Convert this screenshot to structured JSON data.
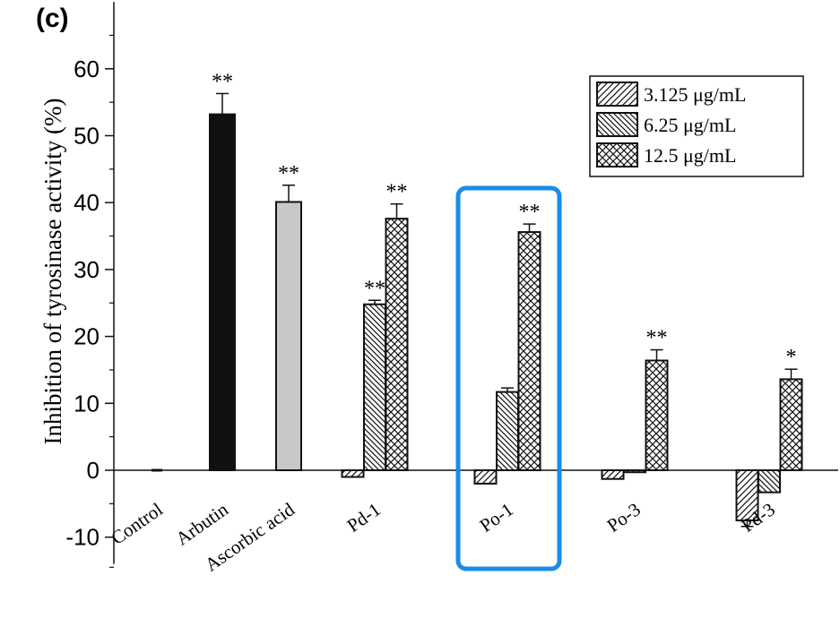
{
  "panel_label": "(c)",
  "chart_data": {
    "type": "bar",
    "title": "",
    "xlabel": "",
    "ylabel": "Inhibition of tyrosinase activity (%)",
    "ylim": [
      -14,
      70
    ],
    "yticks": [
      "60",
      "50",
      "40",
      "30",
      "20",
      "10",
      "0",
      "-10"
    ],
    "ytick_values": [
      60,
      50,
      40,
      30,
      20,
      10,
      0,
      -10
    ],
    "legend_position": "top-right",
    "highlight": {
      "category": "Po-1",
      "color": "#1a8ce8"
    },
    "controls": [
      {
        "category": "Control",
        "value": 0,
        "error": 0,
        "sig": "",
        "fill": "#ffffff"
      },
      {
        "category": "Arbutin",
        "value": 53.2,
        "error": 3.1,
        "sig": "**",
        "fill": "#111111"
      },
      {
        "category": "Ascorbic acid",
        "value": 40.1,
        "error": 2.5,
        "sig": "**",
        "fill": "#c8c8c8"
      }
    ],
    "categories": [
      "Pd-1",
      "Po-1",
      "Po-3",
      "Pd-3"
    ],
    "series": [
      {
        "name": "3.125 μg/mL",
        "pattern": "diag-right",
        "values": [
          -1.0,
          -2.0,
          -1.3,
          -7.5
        ],
        "errors": [
          0,
          0,
          0,
          0.9
        ],
        "sig": [
          "",
          "",
          "",
          ""
        ]
      },
      {
        "name": "6.25 μg/mL",
        "pattern": "diag-left",
        "values": [
          24.8,
          11.7,
          -0.3,
          -3.3
        ],
        "errors": [
          0.6,
          0.6,
          0,
          0
        ],
        "sig": [
          "**",
          "",
          "",
          ""
        ]
      },
      {
        "name": "12.5 μg/mL",
        "pattern": "crosshatch",
        "values": [
          37.6,
          35.6,
          16.4,
          13.6
        ],
        "errors": [
          2.2,
          1.2,
          1.6,
          1.5
        ],
        "sig": [
          "**",
          "**",
          "**",
          "*"
        ]
      }
    ]
  }
}
